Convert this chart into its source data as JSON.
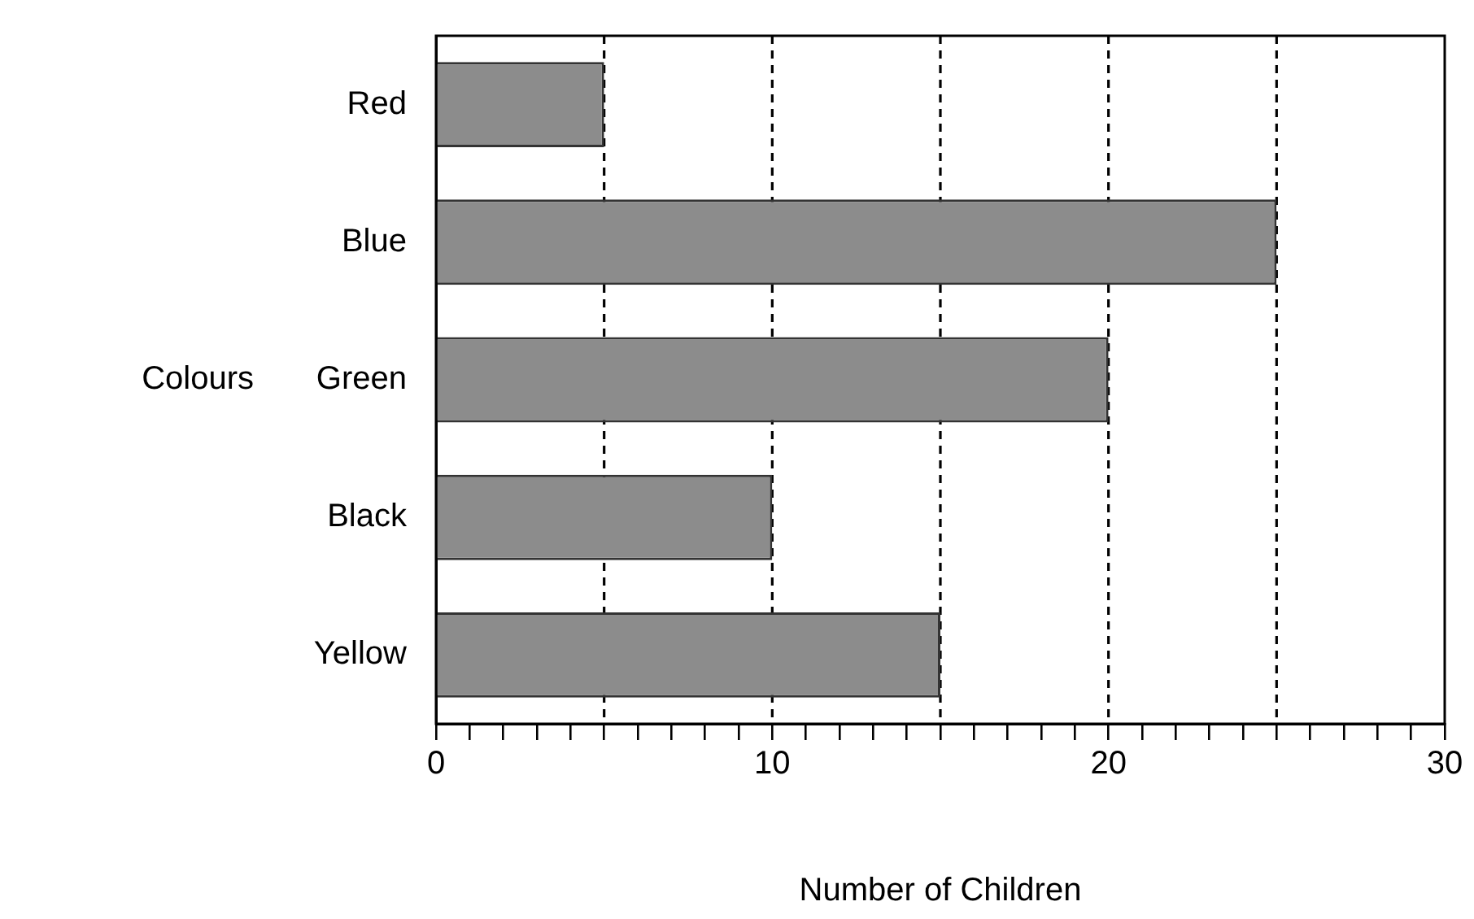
{
  "chart_data": {
    "type": "bar",
    "orientation": "horizontal",
    "xlabel": "Number of Children",
    "ylabel": "Colours",
    "categories": [
      "Red",
      "Blue",
      "Green",
      "Black",
      "Yellow"
    ],
    "values": [
      5,
      25,
      20,
      10,
      15
    ],
    "color": "#8c8c8c",
    "xlim": [
      0,
      30
    ],
    "xticks": [
      0,
      {
        "value": 1,
        "label": null
      },
      {
        "value": 2,
        "label": null
      },
      {
        "value": 3,
        "label": null
      },
      {
        "value": 4,
        "label": null
      },
      {
        "value": 5,
        "label": null
      },
      {
        "value": 6,
        "label": null
      },
      {
        "value": 7,
        "label": null
      },
      {
        "value": 8,
        "label": null
      },
      {
        "value": 9,
        "label": null
      },
      10,
      {
        "value": 11,
        "label": null
      },
      {
        "value": 12,
        "label": null
      },
      {
        "value": 13,
        "label": null
      },
      {
        "value": 14,
        "label": null
      },
      {
        "value": 15,
        "label": null
      },
      {
        "value": 16,
        "label": null
      },
      {
        "value": 17,
        "label": null
      },
      {
        "value": 18,
        "label": null
      },
      {
        "value": 19,
        "label": null
      },
      20,
      {
        "value": 21,
        "label": null
      },
      {
        "value": 22,
        "label": null
      },
      {
        "value": 23,
        "label": null
      },
      {
        "value": 24,
        "label": null
      },
      {
        "value": 25,
        "label": null
      },
      {
        "value": 26,
        "label": null
      },
      {
        "value": 27,
        "label": null
      },
      {
        "value": 28,
        "label": null
      },
      {
        "value": 29,
        "label": null
      },
      30
    ],
    "ref_lines": [
      {
        "axis": "x",
        "value": 5,
        "label": null,
        "line_style": "dashed"
      },
      {
        "axis": "x",
        "value": 10,
        "label": null,
        "line_style": "dashed"
      },
      {
        "axis": "x",
        "value": 15,
        "label": null,
        "line_style": "dashed"
      },
      {
        "axis": "x",
        "value": 20,
        "label": null,
        "line_style": "dashed"
      },
      {
        "axis": "x",
        "value": 25,
        "label": null,
        "line_style": "dashed"
      }
    ],
    "grid": false,
    "legend": false
  }
}
